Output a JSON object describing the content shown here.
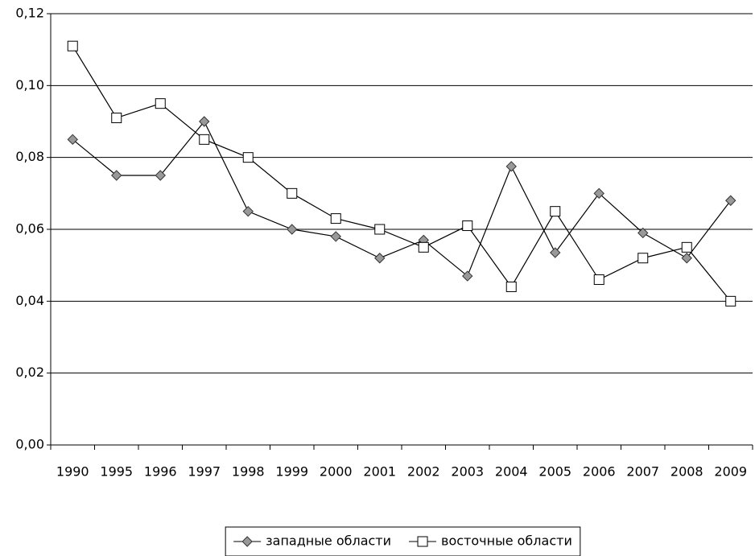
{
  "chart_data": {
    "type": "line",
    "categories": [
      "1990",
      "1995",
      "1996",
      "1997",
      "1998",
      "1999",
      "2000",
      "2001",
      "2002",
      "2003",
      "2004",
      "2005",
      "2006",
      "2007",
      "2008",
      "2009"
    ],
    "series": [
      {
        "name": "западные области",
        "color": "#000000",
        "marker": "diamond",
        "marker_fill": "#999999",
        "values": [
          0.085,
          0.075,
          0.075,
          0.09,
          0.065,
          0.06,
          0.058,
          0.052,
          0.057,
          0.047,
          0.0775,
          0.0535,
          0.07,
          0.059,
          0.052,
          0.068
        ]
      },
      {
        "name": "восточные области",
        "color": "#000000",
        "marker": "square",
        "marker_fill": "#ffffff",
        "values": [
          0.111,
          0.091,
          0.095,
          0.085,
          0.08,
          0.07,
          0.063,
          0.06,
          0.055,
          0.061,
          0.044,
          0.065,
          0.046,
          0.052,
          0.055,
          0.04
        ]
      }
    ],
    "ylim": [
      0,
      0.12
    ],
    "yticks": [
      {
        "value": 0,
        "label": "0,00"
      },
      {
        "value": 0.02,
        "label": "0,02"
      },
      {
        "value": 0.04,
        "label": "0,04"
      },
      {
        "value": 0.06,
        "label": "0,06"
      },
      {
        "value": 0.08,
        "label": "0,08"
      },
      {
        "value": 0.1,
        "label": "0,10"
      },
      {
        "value": 0.12,
        "label": "0,12"
      }
    ],
    "grid": true,
    "legend": "bottom"
  }
}
